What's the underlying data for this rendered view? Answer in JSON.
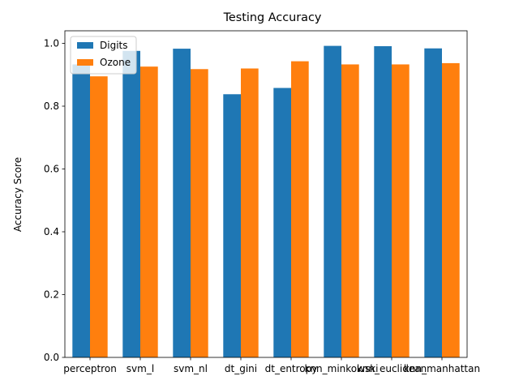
{
  "chart_data": {
    "type": "bar",
    "title": "Testing Accuracy",
    "xlabel": "",
    "ylabel": "Accuracy Score",
    "categories": [
      "perceptron",
      "svm_l",
      "svm_nl",
      "dt_gini",
      "dt_entropy",
      "knn_minkowski",
      "knn_euclidean",
      "knn_manhattan"
    ],
    "series": [
      {
        "name": "Digits",
        "color": "#1f77b4",
        "values": [
          0.933,
          0.976,
          0.983,
          0.838,
          0.858,
          0.992,
          0.991,
          0.984
        ]
      },
      {
        "name": "Ozone",
        "color": "#ff7f0e",
        "values": [
          0.895,
          0.926,
          0.918,
          0.92,
          0.943,
          0.933,
          0.933,
          0.937
        ]
      }
    ],
    "ylim": [
      0,
      1.04
    ],
    "yticks": [
      0.0,
      0.2,
      0.4,
      0.6,
      0.8,
      1.0
    ],
    "ytick_labels": [
      "0.0",
      "0.2",
      "0.4",
      "0.6",
      "0.8",
      "1.0"
    ],
    "grid": false,
    "legend": "top-left"
  }
}
